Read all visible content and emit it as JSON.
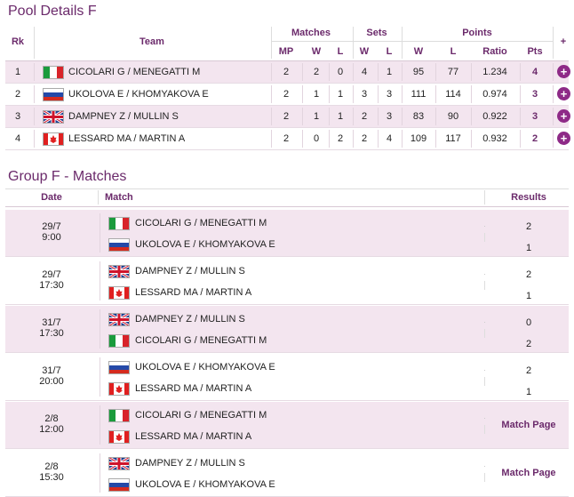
{
  "pool": {
    "title": "Pool Details F",
    "headers": {
      "rk": "Rk",
      "team": "Team",
      "matches": "Matches",
      "sets": "Sets",
      "points": "Points",
      "plus": "+",
      "sub": [
        "MP",
        "W",
        "L",
        "W",
        "L",
        "W",
        "L",
        "Ratio",
        "Pts"
      ]
    },
    "rows": [
      [
        1,
        "CICOLARI G / MENEGATTI M",
        2,
        2,
        0,
        4,
        1,
        95,
        77,
        "1.234",
        4
      ],
      [
        2,
        "UKOLOVA E / KHOMYAKOVA E",
        2,
        1,
        1,
        3,
        3,
        111,
        114,
        "0.974",
        3
      ],
      [
        3,
        "DAMPNEY Z / MULLIN S",
        2,
        1,
        1,
        2,
        3,
        83,
        90,
        "0.922",
        3
      ],
      [
        4,
        "LESSARD MA / MARTIN A",
        2,
        0,
        2,
        2,
        4,
        109,
        117,
        "0.932",
        2
      ]
    ]
  },
  "matches": {
    "title": "Group F - Matches",
    "headers": {
      "date": "Date",
      "match": "Match",
      "results": "Results"
    },
    "rows": [
      {
        "date": "29/7",
        "time": "9:00",
        "team1": "CICOLARI G  / MENEGATTI M",
        "team2": "UKOLOVA E / KHOMYAKOVA E",
        "result1": 2,
        "result2": 1
      },
      {
        "date": "29/7",
        "time": "17:30",
        "team1": "DAMPNEY Z  / MULLIN S",
        "team2": "LESSARD MA / MARTIN A",
        "result1": 2,
        "result2": 1
      },
      {
        "date": "31/7",
        "time": "17:30",
        "team1": "DAMPNEY Z / MULLIN S",
        "team2": "CICOLARI G  / MENEGATTI M",
        "result1": 0,
        "result2": 2
      },
      {
        "date": "31/7",
        "time": "20:00",
        "team1": "UKOLOVA E  / KHOMYAKOVA E",
        "team2": "LESSARD MA / MARTIN A",
        "result1": 2,
        "result2": 1
      },
      {
        "date": "2/8",
        "time": "12:00",
        "team1": "CICOLARI G / MENEGATTI M",
        "team2": "LESSARD MA / MARTIN A",
        "link": "Match Page"
      },
      {
        "date": "2/8",
        "time": "15:30",
        "team1": "DAMPNEY Z / MULLIN S",
        "team2": "UKOLOVA E / KHOMYAKOVA E",
        "link": "Match Page"
      }
    ]
  }
}
